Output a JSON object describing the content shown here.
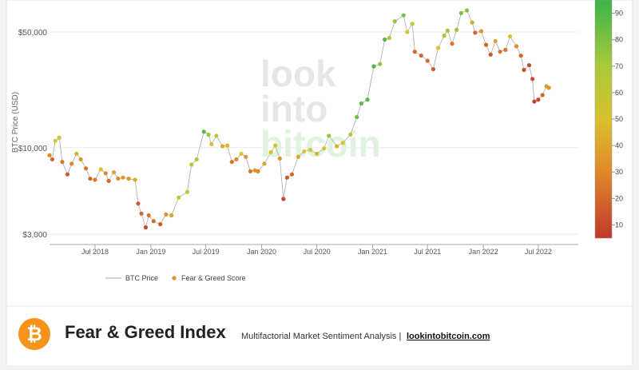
{
  "chart_data": {
    "type": "scatter",
    "y_label": "BTC Price (USD)",
    "log_y": true,
    "grid": true,
    "watermark": [
      "look",
      "into",
      "bitcoin"
    ],
    "x": [
      "2018-02-01",
      "2018-02-10",
      "2018-02-20",
      "2018-03-05",
      "2018-03-15",
      "2018-04-01",
      "2018-04-15",
      "2018-05-01",
      "2018-05-15",
      "2018-06-01",
      "2018-06-15",
      "2018-07-01",
      "2018-07-20",
      "2018-08-05",
      "2018-08-15",
      "2018-09-01",
      "2018-09-15",
      "2018-10-01",
      "2018-10-20",
      "2018-11-10",
      "2018-11-20",
      "2018-12-01",
      "2018-12-15",
      "2018-12-25",
      "2019-01-10",
      "2019-02-01",
      "2019-02-20",
      "2019-03-10",
      "2019-04-03",
      "2019-05-01",
      "2019-05-15",
      "2019-06-01",
      "2019-06-25",
      "2019-07-10",
      "2019-07-20",
      "2019-08-05",
      "2019-08-25",
      "2019-09-10",
      "2019-09-25",
      "2019-10-10",
      "2019-10-26",
      "2019-11-10",
      "2019-11-25",
      "2019-12-10",
      "2019-12-20",
      "2020-01-10",
      "2020-02-01",
      "2020-02-15",
      "2020-03-01",
      "2020-03-13",
      "2020-03-25",
      "2020-04-10",
      "2020-05-01",
      "2020-05-20",
      "2020-06-10",
      "2020-07-01",
      "2020-07-25",
      "2020-08-10",
      "2020-09-05",
      "2020-09-25",
      "2020-10-20",
      "2020-11-10",
      "2020-11-25",
      "2020-12-15",
      "2021-01-05",
      "2021-01-25",
      "2021-02-10",
      "2021-02-25",
      "2021-03-15",
      "2021-04-13",
      "2021-04-25",
      "2021-05-12",
      "2021-05-20",
      "2021-06-10",
      "2021-07-01",
      "2021-07-20",
      "2021-08-05",
      "2021-08-25",
      "2021-09-05",
      "2021-09-20",
      "2021-10-05",
      "2021-10-20",
      "2021-11-08",
      "2021-11-25",
      "2021-12-05",
      "2021-12-25",
      "2022-01-10",
      "2022-01-25",
      "2022-02-10",
      "2022-02-25",
      "2022-03-15",
      "2022-03-30",
      "2022-04-20",
      "2022-05-05",
      "2022-05-15",
      "2022-06-01",
      "2022-06-12",
      "2022-06-18",
      "2022-07-01",
      "2022-07-15",
      "2022-07-28",
      "2022-08-05"
    ],
    "series": [
      {
        "name": "BTC Price",
        "color": "#aaaaaa",
        "values": [
          9000,
          8500,
          11000,
          11500,
          8200,
          6900,
          8000,
          9200,
          8500,
          7500,
          6500,
          6400,
          7400,
          7000,
          6300,
          7100,
          6500,
          6600,
          6500,
          6400,
          4600,
          4000,
          3300,
          3900,
          3600,
          3450,
          3950,
          3900,
          5000,
          5400,
          7900,
          8500,
          12500,
          12000,
          10500,
          11800,
          10200,
          10300,
          8200,
          8500,
          9200,
          8800,
          7200,
          7300,
          7200,
          8000,
          9400,
          10300,
          8600,
          4900,
          6600,
          6900,
          8800,
          9500,
          9700,
          9200,
          9900,
          11800,
          10200,
          10700,
          12000,
          15300,
          18500,
          19500,
          31000,
          32000,
          45000,
          46000,
          58000,
          63000,
          50000,
          56000,
          38000,
          36000,
          33500,
          29800,
          40000,
          47500,
          51000,
          42500,
          51500,
          65000,
          67500,
          57000,
          49500,
          50500,
          41800,
          36500,
          44000,
          38000,
          39000,
          47000,
          41000,
          36000,
          29500,
          31500,
          26000,
          19000,
          19500,
          20800,
          23500,
          23000
        ]
      }
    ],
    "score": {
      "name": "Fear & Greed Score",
      "legend_color": "#e08a2a",
      "values": [
        30,
        20,
        50,
        55,
        25,
        15,
        30,
        45,
        35,
        25,
        20,
        25,
        50,
        30,
        20,
        40,
        30,
        35,
        35,
        40,
        15,
        20,
        10,
        25,
        20,
        15,
        35,
        40,
        55,
        60,
        65,
        70,
        88,
        75,
        55,
        60,
        40,
        45,
        25,
        30,
        50,
        35,
        25,
        35,
        30,
        40,
        55,
        55,
        35,
        10,
        15,
        20,
        40,
        50,
        50,
        45,
        55,
        75,
        45,
        50,
        65,
        85,
        88,
        90,
        92,
        75,
        90,
        70,
        75,
        80,
        55,
        60,
        20,
        20,
        20,
        15,
        50,
        70,
        72,
        25,
        70,
        80,
        78,
        40,
        20,
        35,
        20,
        15,
        40,
        25,
        25,
        55,
        30,
        20,
        12,
        12,
        10,
        8,
        10,
        20,
        35,
        35
      ],
      "lim": [
        5,
        95
      ],
      "ticks": [
        10,
        20,
        30,
        40,
        50,
        60,
        70,
        80,
        90
      ],
      "stops": [
        [
          5,
          "#c0392b"
        ],
        [
          30,
          "#e0882a"
        ],
        [
          50,
          "#d9c22e"
        ],
        [
          70,
          "#a9c93a"
        ],
        [
          95,
          "#3cb44a"
        ]
      ]
    },
    "xlim": [
      "2018-02-01",
      "2022-11-10"
    ],
    "xticks": [
      {
        "value": "2018-07-01",
        "label": "Jul 2018"
      },
      {
        "value": "2019-01-01",
        "label": "Jan 2019"
      },
      {
        "value": "2019-07-01",
        "label": "Jul 2019"
      },
      {
        "value": "2020-01-01",
        "label": "Jan 2020"
      },
      {
        "value": "2020-07-01",
        "label": "Jul 2020"
      },
      {
        "value": "2021-01-01",
        "label": "Jan 2021"
      },
      {
        "value": "2021-07-01",
        "label": "Jul 2021"
      },
      {
        "value": "2022-01-01",
        "label": "Jan 2022"
      },
      {
        "value": "2022-07-01",
        "label": "Jul 2022"
      }
    ],
    "ylim": [
      2600,
      78000
    ],
    "yticks": [
      {
        "value": 3000,
        "label": "$3,000"
      },
      {
        "value": 10000,
        "label": "$10,000"
      },
      {
        "value": 50000,
        "label": "$50,000"
      }
    ]
  },
  "footer": {
    "logo": "₿",
    "title": "Fear & Greed Index",
    "subtitle": "Multifactorial Market Sentiment Analysis |",
    "link": "lookintobitcoin.com"
  }
}
